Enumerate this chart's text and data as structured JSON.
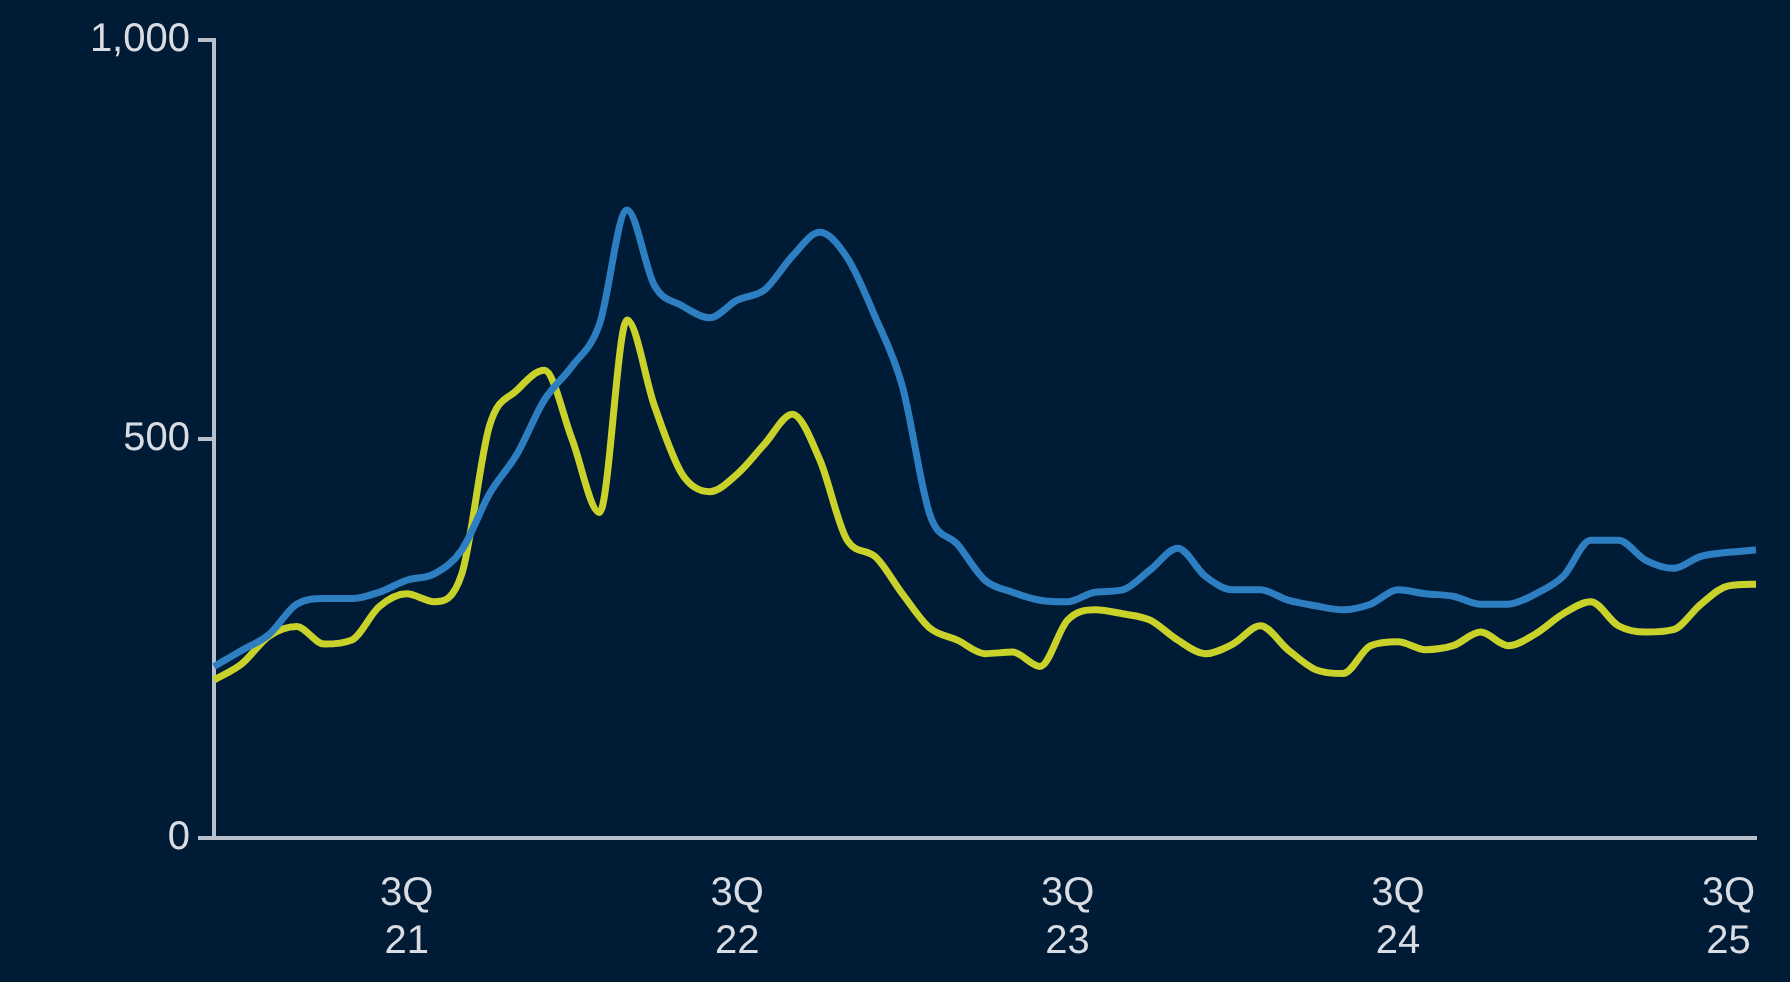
{
  "chart_data": {
    "type": "line",
    "categories": [
      null,
      null,
      null,
      null,
      null,
      null,
      null,
      "3Q\n21",
      null,
      null,
      null,
      null,
      null,
      null,
      null,
      null,
      null,
      null,
      null,
      "3Q\n22",
      null,
      null,
      null,
      null,
      null,
      null,
      null,
      null,
      null,
      null,
      null,
      "3Q\n23",
      null,
      null,
      null,
      null,
      null,
      null,
      null,
      null,
      null,
      null,
      null,
      "3Q\n24",
      null,
      null,
      null,
      null,
      null,
      null,
      null,
      null,
      null,
      null,
      null,
      "3Q\n25",
      null
    ],
    "series": [
      {
        "color": "#2e7fc1",
        "values": [
          215,
          235,
          255,
          293,
          300,
          300,
          308,
          323,
          331,
          361,
          431,
          481,
          549,
          591,
          644,
          787,
          692,
          667,
          652,
          674,
          687,
          729,
          759,
          727,
          654,
          566,
          405,
          368,
          323,
          308,
          298,
          296,
          308,
          311,
          336,
          363,
          328,
          311,
          311,
          298,
          291,
          286,
          293,
          311,
          306,
          303,
          293,
          293,
          306,
          328,
          373,
          373,
          348,
          338,
          353,
          358,
          361
        ]
      },
      {
        "color": "#c8d22a",
        "values": [
          198,
          218,
          253,
          265,
          243,
          248,
          290,
          306,
          296,
          331,
          516,
          561,
          586,
          500,
          408,
          649,
          541,
          456,
          434,
          456,
          494,
          531,
          474,
          373,
          353,
          306,
          263,
          248,
          231,
          233,
          215,
          273,
          286,
          281,
          273,
          248,
          231,
          243,
          266,
          236,
          211,
          206,
          241,
          246,
          236,
          241,
          258,
          241,
          256,
          281,
          296,
          266,
          258,
          261,
          293,
          316,
          318
        ]
      }
    ],
    "ylim": [
      0,
      1000
    ],
    "yticks": [
      0,
      500,
      {
        "value": 1000,
        "label": "1,000"
      }
    ],
    "legend": false,
    "grid": false,
    "line_style": "solid",
    "marker": "none"
  }
}
